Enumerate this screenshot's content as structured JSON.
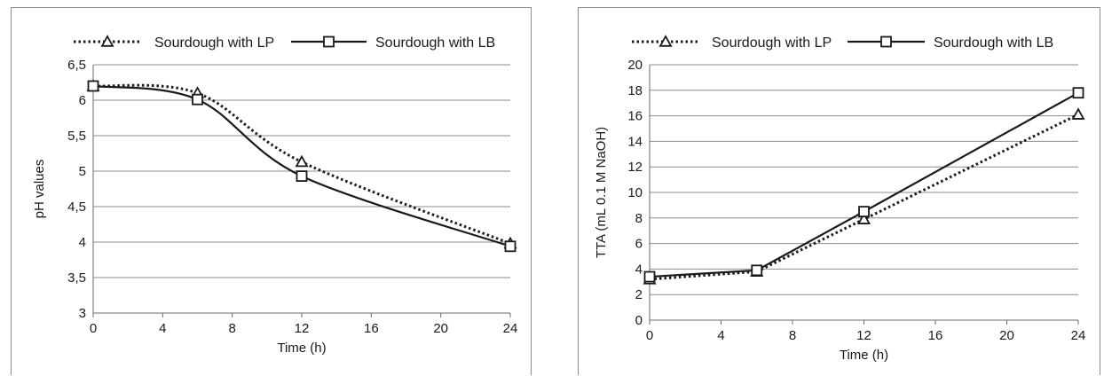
{
  "chart_data": [
    {
      "type": "line",
      "title": "",
      "xlabel": "Time (h)",
      "ylabel": "pH values",
      "xlim": [
        0,
        24
      ],
      "ylim": [
        3,
        6.5
      ],
      "xticks": [
        0,
        4,
        8,
        12,
        16,
        20,
        24
      ],
      "xtick_labels": [
        "0",
        "4",
        "8",
        "12",
        "16",
        "20",
        "24"
      ],
      "yticks": [
        3,
        3.5,
        4,
        4.5,
        5,
        5.5,
        6,
        6.5
      ],
      "ytick_labels": [
        "3",
        "3,5",
        "4",
        "4,5",
        "5",
        "5,5",
        "6",
        "6,5"
      ],
      "grid": "horizontal",
      "legend_position": "top",
      "smooth": true,
      "series": [
        {
          "name": "Sourdough with LP",
          "line_style": "dotted",
          "marker": "triangle",
          "color": "#1a1a1a",
          "x": [
            0,
            6,
            12,
            24
          ],
          "values": [
            6.2,
            6.1,
            5.13,
            3.98
          ]
        },
        {
          "name": "Sourdough with LB",
          "line_style": "solid",
          "marker": "square",
          "color": "#1a1a1a",
          "x": [
            0,
            6,
            12,
            24
          ],
          "values": [
            6.2,
            6.01,
            4.93,
            3.94
          ]
        }
      ]
    },
    {
      "type": "line",
      "title": "",
      "xlabel": "Time (h)",
      "ylabel": "TTA (mL 0.1 M NaOH)",
      "xlim": [
        0,
        24
      ],
      "ylim": [
        0,
        20
      ],
      "xticks": [
        0,
        4,
        8,
        12,
        16,
        20,
        24
      ],
      "xtick_labels": [
        "0",
        "4",
        "8",
        "12",
        "16",
        "20",
        "24"
      ],
      "yticks": [
        0,
        2,
        4,
        6,
        8,
        10,
        12,
        14,
        16,
        18,
        20
      ],
      "ytick_labels": [
        "0",
        "2",
        "4",
        "6",
        "8",
        "10",
        "12",
        "14",
        "16",
        "18",
        "20"
      ],
      "grid": "horizontal",
      "legend_position": "top",
      "smooth": false,
      "series": [
        {
          "name": "Sourdough with LP",
          "line_style": "dotted",
          "marker": "triangle",
          "color": "#1a1a1a",
          "x": [
            0,
            6,
            12,
            24
          ],
          "values": [
            3.2,
            3.8,
            7.9,
            16.1
          ]
        },
        {
          "name": "Sourdough with LB",
          "line_style": "solid",
          "marker": "square",
          "color": "#1a1a1a",
          "x": [
            0,
            6,
            12,
            24
          ],
          "values": [
            3.4,
            3.9,
            8.5,
            17.8
          ]
        }
      ]
    }
  ]
}
